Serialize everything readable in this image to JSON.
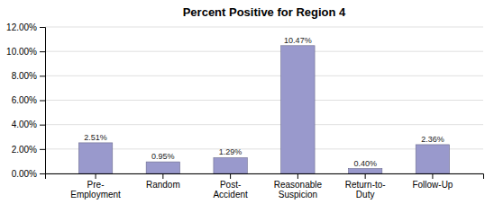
{
  "chart_data": {
    "type": "bar",
    "title": "Percent Positive for Region 4",
    "categories": [
      "Pre-\nEmployment",
      "Random",
      "Post-\nAccident",
      "Reasonable\nSuspicion",
      "Return-to-\nDuty",
      "Follow-Up"
    ],
    "values": [
      2.51,
      0.95,
      1.29,
      10.47,
      0.4,
      2.36
    ],
    "value_labels": [
      "2.51%",
      "0.95%",
      "1.29%",
      "10.47%",
      "0.40%",
      "2.36%"
    ],
    "data_labels": true,
    "color": "#9999cc",
    "ylim": [
      0,
      12.0
    ],
    "yticks": [
      {
        "value": 0,
        "label": "0.00%"
      },
      {
        "value": 2.0,
        "label": "2.00%"
      },
      {
        "value": 4.0,
        "label": "4.00%"
      },
      {
        "value": 6.0,
        "label": "6.00%"
      },
      {
        "value": 8.0,
        "label": "8.00%"
      },
      {
        "value": 10.0,
        "label": "10.00%"
      },
      {
        "value": 12.0,
        "label": "12.00%"
      }
    ],
    "grid": true
  }
}
